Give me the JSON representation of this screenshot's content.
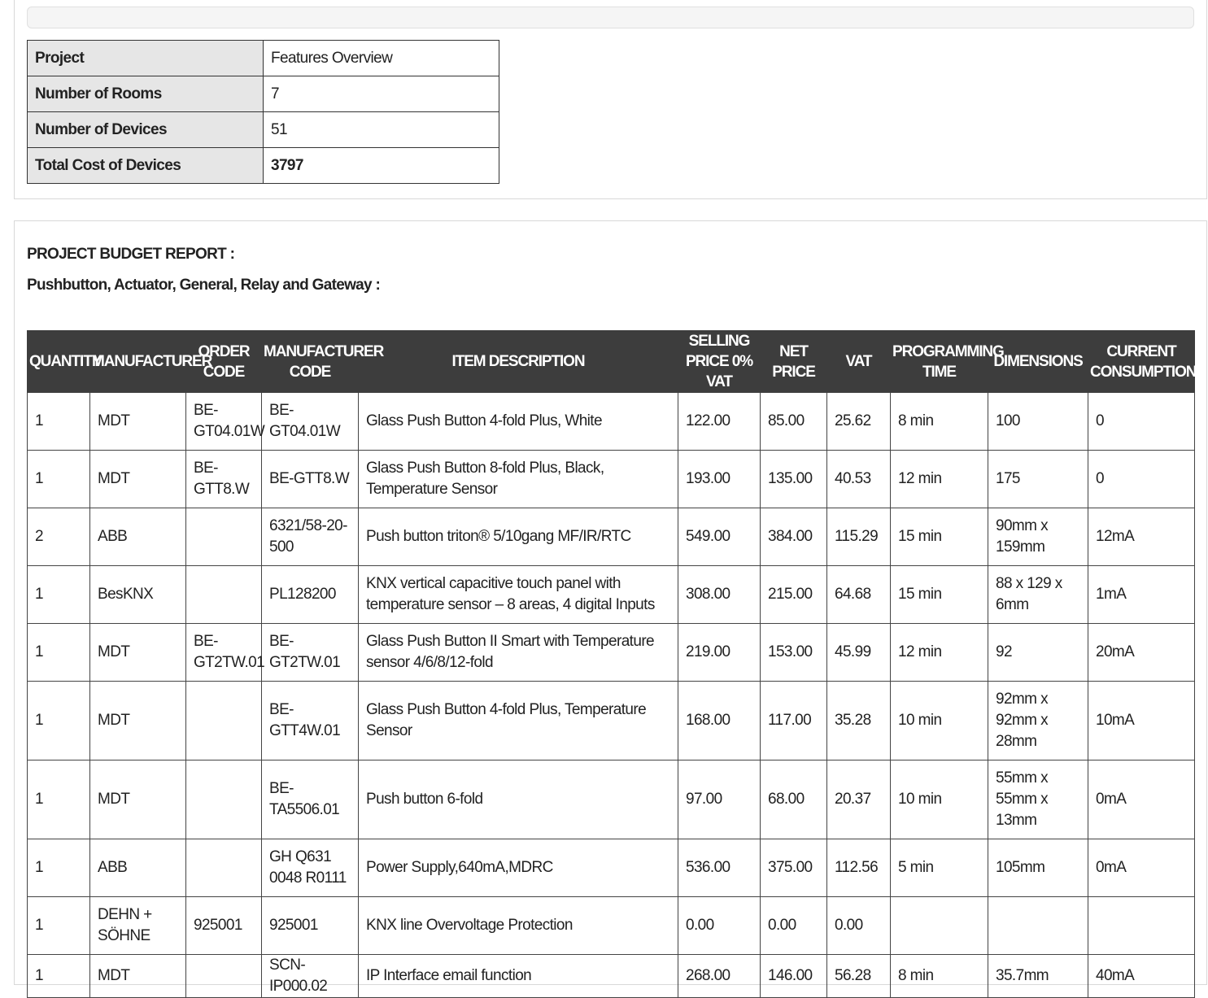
{
  "summary": {
    "rows": [
      {
        "label": "Project",
        "value": "Features Overview"
      },
      {
        "label": "Number of Rooms",
        "value": "7"
      },
      {
        "label": "Number of Devices",
        "value": "51"
      },
      {
        "label": "Total Cost of Devices",
        "value": "3797"
      }
    ]
  },
  "report": {
    "title": "PROJECT BUDGET REPORT :",
    "category": "Pushbutton, Actuator, General, Relay and Gateway :"
  },
  "table": {
    "columns": [
      "QUANTITY",
      "MANUFACTURER",
      "ORDER CODE",
      "MANUFACTURER CODE",
      "ITEM DESCRIPTION",
      "SELLING PRICE 0% VAT",
      "NET PRICE",
      "VAT",
      "PROGRAMMING TIME",
      "DIMENSIONS",
      "CURRENT CONSUMPTION"
    ],
    "rows": [
      [
        "1",
        "MDT",
        "BE-GT04.01W",
        "BE-GT04.01W",
        "Glass Push Button 4-fold Plus, White",
        "122.00",
        "85.00",
        "25.62",
        "8 min",
        "100",
        "0"
      ],
      [
        "1",
        "MDT",
        "BE-GTT8.W",
        "BE-GTT8.W",
        "Glass Push Button 8-fold Plus, Black, Temperature Sensor",
        "193.00",
        "135.00",
        "40.53",
        "12 min",
        "175",
        "0"
      ],
      [
        "2",
        "ABB",
        "",
        "6321/58-20-500",
        "Push button triton® 5/10gang MF/IR/RTC",
        "549.00",
        "384.00",
        "115.29",
        "15 min",
        "90mm x 159mm",
        "12mA"
      ],
      [
        "1",
        "BesKNX",
        "",
        "PL128200",
        "KNX vertical capacitive touch panel with temperature sensor – 8 areas, 4 digital Inputs",
        "308.00",
        "215.00",
        "64.68",
        "15 min",
        "88 x 129 x 6mm",
        "1mA"
      ],
      [
        "1",
        "MDT",
        "BE-GT2TW.01",
        "BE-GT2TW.01",
        "Glass Push Button II Smart with Temperature sensor 4/6/8/12-fold",
        "219.00",
        "153.00",
        "45.99",
        "12 min",
        "92",
        "20mA"
      ],
      [
        "1",
        "MDT",
        "",
        "BE-GTT4W.01",
        "Glass Push Button 4-fold Plus, Temperature Sensor",
        "168.00",
        "117.00",
        "35.28",
        "10 min",
        "92mm x 92mm x 28mm",
        "10mA"
      ],
      [
        "1",
        "MDT",
        "",
        "BE-TA5506.01",
        "Push button 6-fold",
        "97.00",
        "68.00",
        "20.37",
        "10 min",
        "55mm x 55mm x 13mm",
        "0mA"
      ],
      [
        "1",
        "ABB",
        "",
        "GH Q631 0048 R0111",
        "Power Supply,640mA,MDRC",
        "536.00",
        "375.00",
        "112.56",
        "5 min",
        "105mm",
        "0mA"
      ],
      [
        "1",
        "DEHN + SÖHNE",
        "925001",
        "925001",
        "KNX line Overvoltage Protection",
        "0.00",
        "0.00",
        "0.00",
        "",
        "",
        ""
      ],
      [
        "1",
        "MDT",
        "",
        "SCN-IP000.02",
        "IP Interface email function",
        "268.00",
        "146.00",
        "56.28",
        "8 min",
        "35.7mm",
        "40mA"
      ]
    ]
  }
}
